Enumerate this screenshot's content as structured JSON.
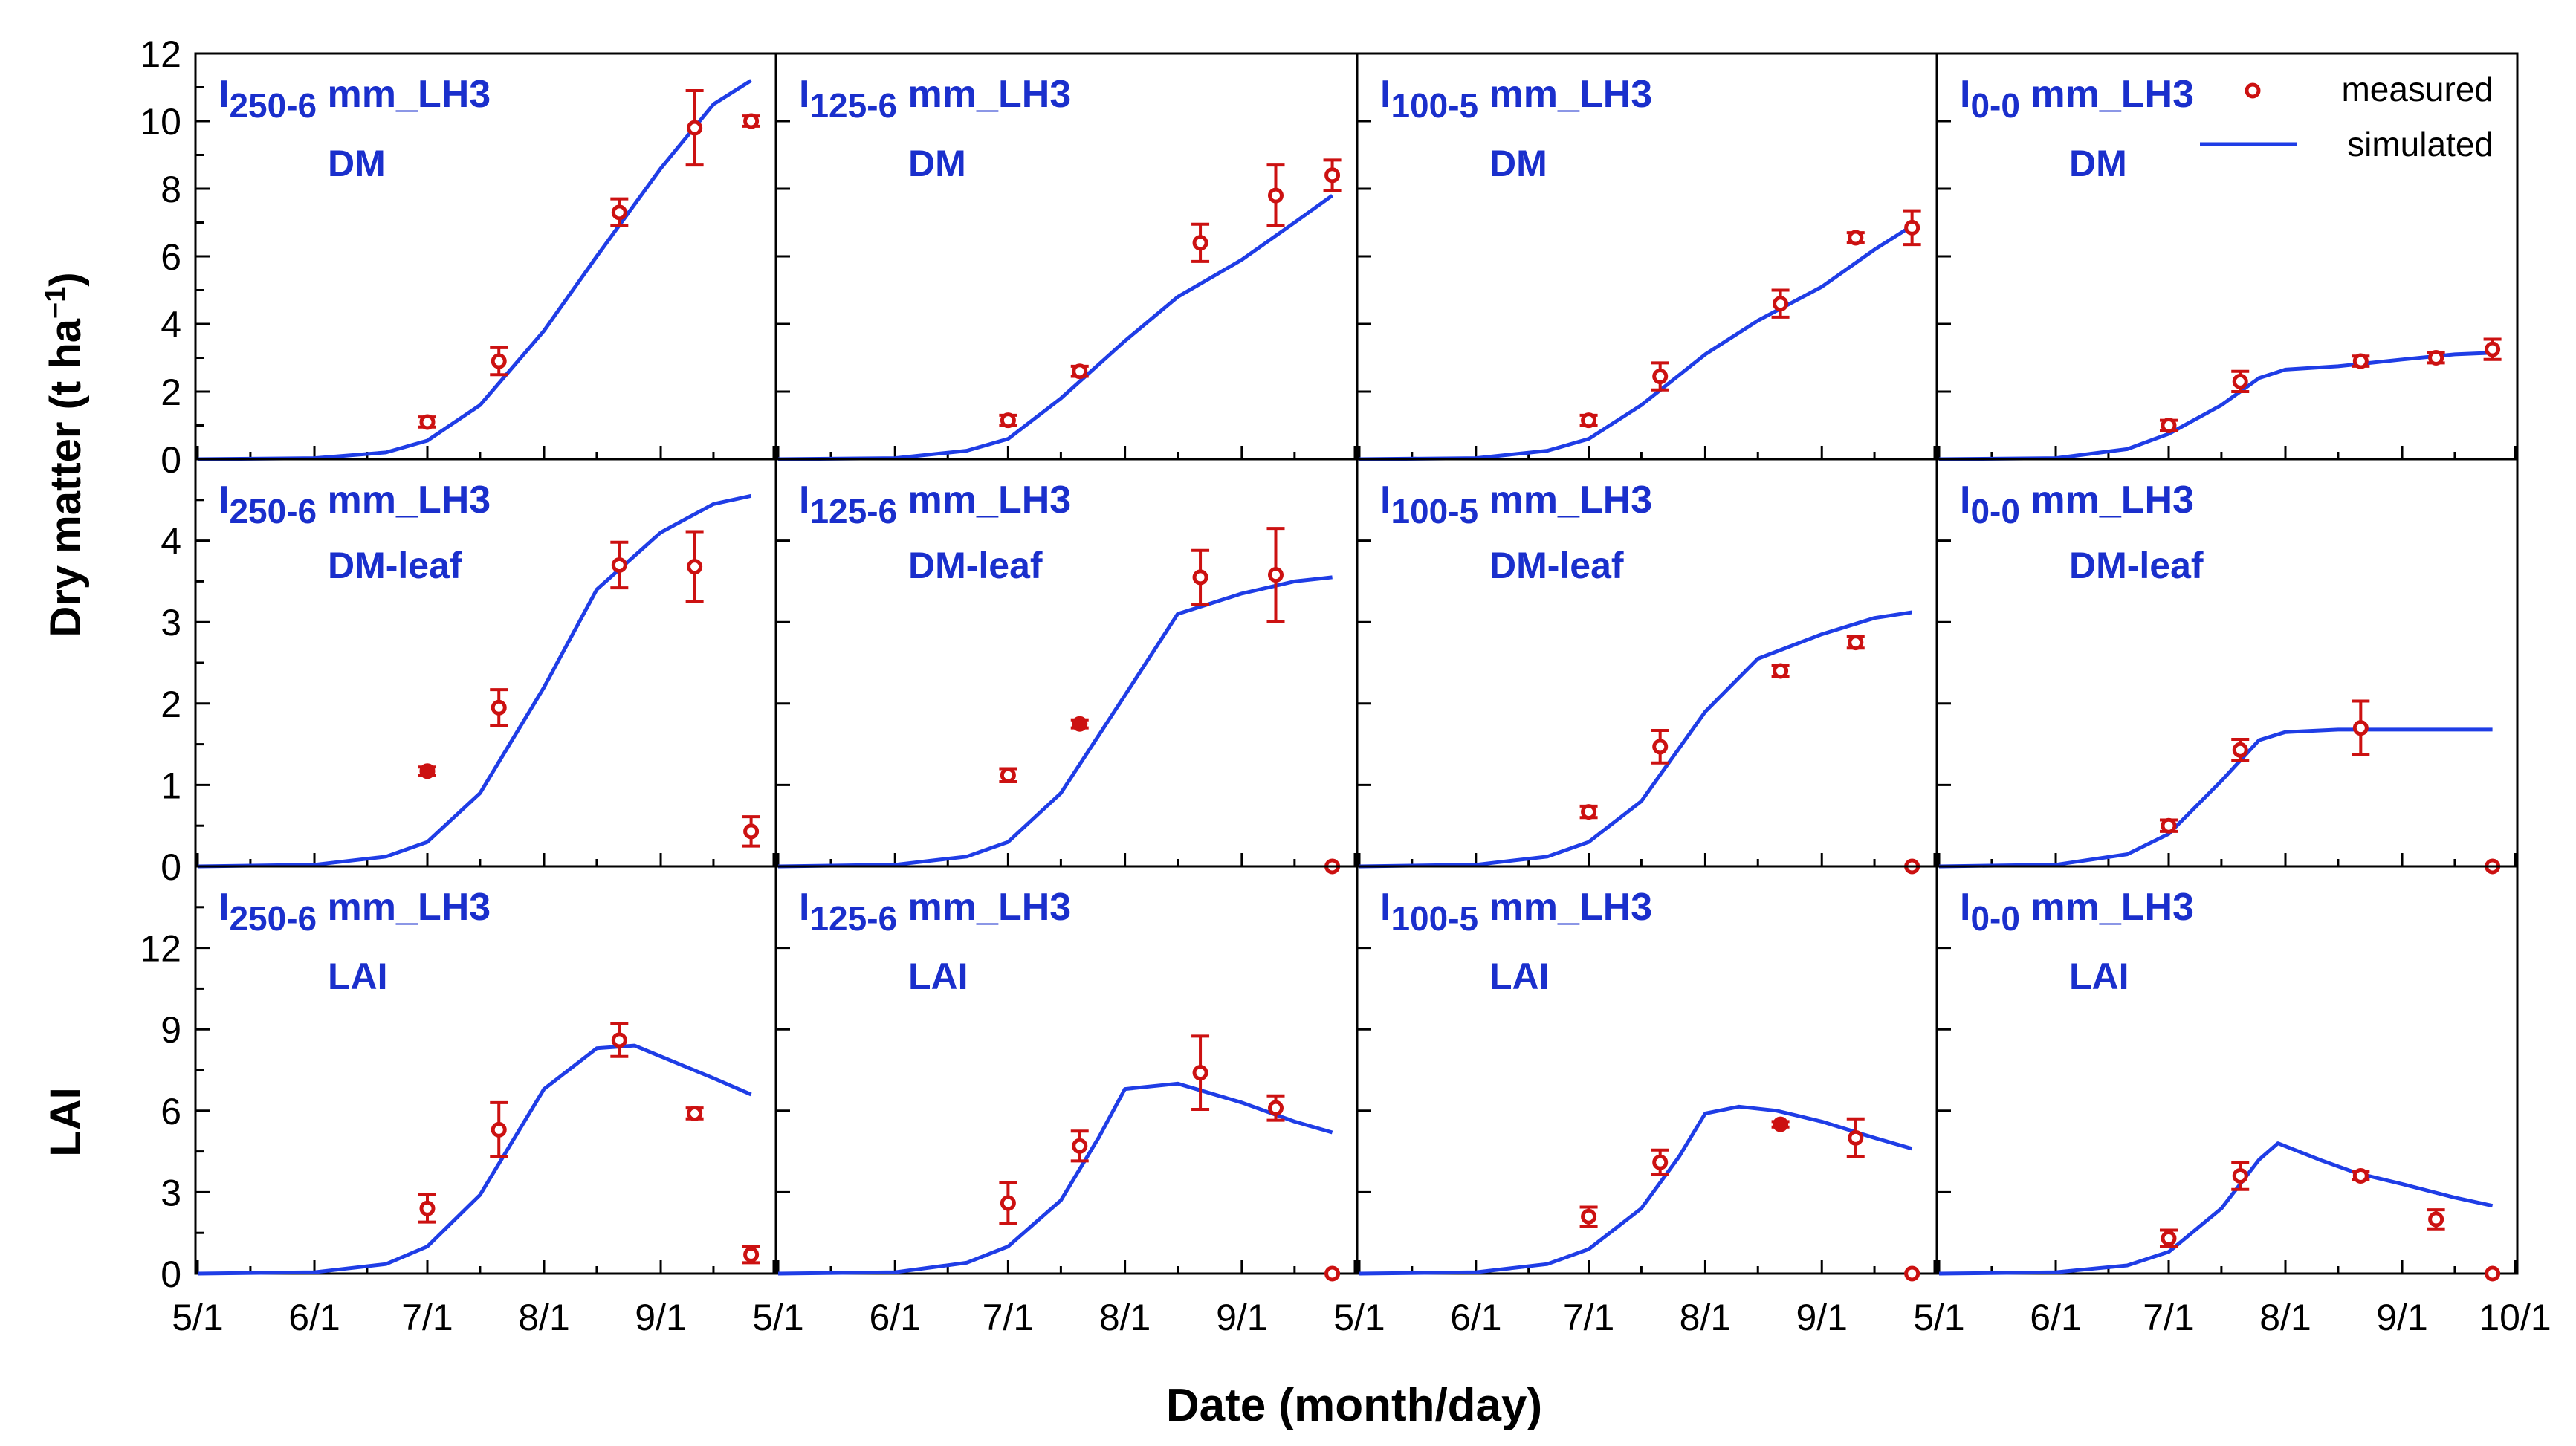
{
  "figure": {
    "ylabel_dm_main": "Dry matter (t ha",
    "ylabel_dm_sup": "−1",
    "ylabel_dm_close": ")",
    "ylabel_lai": "LAI",
    "xlabel": "Date (month/day)",
    "x_tick_labels": [
      "5/1",
      "6/1",
      "7/1",
      "8/1",
      "9/1",
      "5/1",
      "6/1",
      "7/1",
      "8/1",
      "9/1",
      "5/1",
      "6/1",
      "7/1",
      "8/1",
      "9/1",
      "5/1",
      "6/1",
      "7/1",
      "8/1",
      "9/1",
      "10/1"
    ],
    "legend": {
      "measured": "measured",
      "simulated": "simulated",
      "placement": "top-right of panel I0-0 DM"
    },
    "colors": {
      "measured": "#cc1111",
      "simulated": "#1f3de6",
      "label": "#1a2fcc",
      "axis": "#000000"
    }
  },
  "chart_data": [
    {
      "type": "scatter+line",
      "row": 0,
      "col": 0,
      "treatment_main": "I",
      "treatment_sub": "250-6",
      "treatment_rest": " mm_LH3",
      "variable": "DM",
      "ylim": [
        0,
        12
      ],
      "yticks": [
        0,
        2,
        4,
        6,
        8,
        10,
        12
      ],
      "yticks_labeled": true,
      "measured": [
        {
          "x": "7/1",
          "y": 1.1,
          "err": 0.15,
          "filled": false
        },
        {
          "x": "7/20",
          "y": 2.9,
          "err": 0.4,
          "filled": false
        },
        {
          "x": "8/21",
          "y": 7.3,
          "err": 0.4,
          "filled": false
        },
        {
          "x": "9/10",
          "y": 9.8,
          "err": 1.1,
          "filled": false
        },
        {
          "x": "9/25",
          "y": 10.0,
          "err": 0.15,
          "filled": false
        }
      ],
      "simulated": [
        [
          "5/1",
          0
        ],
        [
          "6/1",
          0.03
        ],
        [
          "6/20",
          0.2
        ],
        [
          "7/1",
          0.55
        ],
        [
          "7/15",
          1.6
        ],
        [
          "8/1",
          3.8
        ],
        [
          "8/15",
          6.0
        ],
        [
          "9/1",
          8.6
        ],
        [
          "9/15",
          10.5
        ],
        [
          "9/25",
          11.2
        ]
      ]
    },
    {
      "type": "scatter+line",
      "row": 0,
      "col": 1,
      "treatment_main": "I",
      "treatment_sub": "125-6",
      "treatment_rest": " mm_LH3",
      "variable": "DM",
      "ylim": [
        0,
        12
      ],
      "yticks": [
        0,
        2,
        4,
        6,
        8,
        10,
        12
      ],
      "yticks_labeled": false,
      "measured": [
        {
          "x": "7/1",
          "y": 1.15,
          "err": 0.15,
          "filled": false
        },
        {
          "x": "7/20",
          "y": 2.6,
          "err": 0.15,
          "filled": false
        },
        {
          "x": "8/21",
          "y": 6.4,
          "err": 0.55,
          "filled": false
        },
        {
          "x": "9/10",
          "y": 7.8,
          "err": 0.9,
          "filled": false
        },
        {
          "x": "9/25",
          "y": 8.4,
          "err": 0.45,
          "filled": false
        }
      ],
      "simulated": [
        [
          "5/1",
          0
        ],
        [
          "6/1",
          0.03
        ],
        [
          "6/20",
          0.25
        ],
        [
          "7/1",
          0.6
        ],
        [
          "7/15",
          1.8
        ],
        [
          "8/1",
          3.5
        ],
        [
          "8/15",
          4.8
        ],
        [
          "9/1",
          5.9
        ],
        [
          "9/15",
          7.0
        ],
        [
          "9/25",
          7.8
        ]
      ]
    },
    {
      "type": "scatter+line",
      "row": 0,
      "col": 2,
      "treatment_main": "I",
      "treatment_sub": "100-5",
      "treatment_rest": " mm_LH3",
      "variable": "DM",
      "ylim": [
        0,
        12
      ],
      "yticks": [
        0,
        2,
        4,
        6,
        8,
        10,
        12
      ],
      "yticks_labeled": false,
      "measured": [
        {
          "x": "7/1",
          "y": 1.15,
          "err": 0.15,
          "filled": false
        },
        {
          "x": "7/20",
          "y": 2.45,
          "err": 0.4,
          "filled": false
        },
        {
          "x": "8/21",
          "y": 4.6,
          "err": 0.4,
          "filled": false
        },
        {
          "x": "9/10",
          "y": 6.55,
          "err": 0.15,
          "filled": false
        },
        {
          "x": "9/25",
          "y": 6.85,
          "err": 0.5,
          "filled": false
        }
      ],
      "simulated": [
        [
          "5/1",
          0
        ],
        [
          "6/1",
          0.03
        ],
        [
          "6/20",
          0.25
        ],
        [
          "7/1",
          0.6
        ],
        [
          "7/15",
          1.6
        ],
        [
          "8/1",
          3.1
        ],
        [
          "8/15",
          4.1
        ],
        [
          "9/1",
          5.1
        ],
        [
          "9/15",
          6.2
        ],
        [
          "9/25",
          6.9
        ]
      ]
    },
    {
      "type": "scatter+line",
      "row": 0,
      "col": 3,
      "treatment_main": "I",
      "treatment_sub": "0-0",
      "treatment_rest": " mm_LH3",
      "variable": "DM",
      "ylim": [
        0,
        12
      ],
      "yticks": [
        0,
        2,
        4,
        6,
        8,
        10,
        12
      ],
      "yticks_labeled": false,
      "measured": [
        {
          "x": "7/1",
          "y": 1.0,
          "err": 0.15,
          "filled": false
        },
        {
          "x": "7/20",
          "y": 2.3,
          "err": 0.3,
          "filled": false
        },
        {
          "x": "8/21",
          "y": 2.9,
          "err": 0.15,
          "filled": false
        },
        {
          "x": "9/10",
          "y": 3.0,
          "err": 0.15,
          "filled": false
        },
        {
          "x": "9/25",
          "y": 3.25,
          "err": 0.3,
          "filled": false
        }
      ],
      "simulated": [
        [
          "5/1",
          0
        ],
        [
          "6/1",
          0.03
        ],
        [
          "6/20",
          0.3
        ],
        [
          "7/1",
          0.75
        ],
        [
          "7/15",
          1.6
        ],
        [
          "7/25",
          2.4
        ],
        [
          "8/1",
          2.65
        ],
        [
          "8/15",
          2.75
        ],
        [
          "9/1",
          2.95
        ],
        [
          "9/15",
          3.1
        ],
        [
          "9/25",
          3.15
        ]
      ]
    },
    {
      "type": "scatter+line",
      "row": 1,
      "col": 0,
      "treatment_main": "I",
      "treatment_sub": "250-6",
      "treatment_rest": " mm_LH3",
      "variable": "DM-leaf",
      "ylim": [
        0,
        5
      ],
      "yticks": [
        0,
        1,
        2,
        3,
        4
      ],
      "yticks_labeled": true,
      "measured": [
        {
          "x": "7/1",
          "y": 1.17,
          "err": 0.05,
          "filled": true
        },
        {
          "x": "7/20",
          "y": 1.95,
          "err": 0.22,
          "filled": false
        },
        {
          "x": "8/21",
          "y": 3.7,
          "err": 0.28,
          "filled": false
        },
        {
          "x": "9/10",
          "y": 3.68,
          "err": 0.43,
          "filled": false
        },
        {
          "x": "9/25",
          "y": 0.43,
          "err": 0.18,
          "filled": false
        }
      ],
      "simulated": [
        [
          "5/1",
          0
        ],
        [
          "6/1",
          0.02
        ],
        [
          "6/20",
          0.12
        ],
        [
          "7/1",
          0.3
        ],
        [
          "7/15",
          0.9
        ],
        [
          "8/1",
          2.2
        ],
        [
          "8/15",
          3.4
        ],
        [
          "9/1",
          4.1
        ],
        [
          "9/15",
          4.45
        ],
        [
          "9/25",
          4.55
        ]
      ]
    },
    {
      "type": "scatter+line",
      "row": 1,
      "col": 1,
      "treatment_main": "I",
      "treatment_sub": "125-6",
      "treatment_rest": " mm_LH3",
      "variable": "DM-leaf",
      "ylim": [
        0,
        5
      ],
      "yticks": [
        0,
        1,
        2,
        3,
        4
      ],
      "yticks_labeled": false,
      "measured": [
        {
          "x": "7/1",
          "y": 1.12,
          "err": 0.08,
          "filled": false
        },
        {
          "x": "7/20",
          "y": 1.75,
          "err": 0.05,
          "filled": true
        },
        {
          "x": "8/21",
          "y": 3.55,
          "err": 0.33,
          "filled": false
        },
        {
          "x": "9/10",
          "y": 3.58,
          "err": 0.57,
          "filled": false
        },
        {
          "x": "9/25",
          "y": 0.0,
          "err": 0,
          "filled": false
        }
      ],
      "simulated": [
        [
          "5/1",
          0
        ],
        [
          "6/1",
          0.02
        ],
        [
          "6/20",
          0.12
        ],
        [
          "7/1",
          0.3
        ],
        [
          "7/15",
          0.9
        ],
        [
          "8/1",
          2.1
        ],
        [
          "8/15",
          3.1
        ],
        [
          "9/1",
          3.35
        ],
        [
          "9/15",
          3.5
        ],
        [
          "9/25",
          3.55
        ]
      ]
    },
    {
      "type": "scatter+line",
      "row": 1,
      "col": 2,
      "treatment_main": "I",
      "treatment_sub": "100-5",
      "treatment_rest": " mm_LH3",
      "variable": "DM-leaf",
      "ylim": [
        0,
        5
      ],
      "yticks": [
        0,
        1,
        2,
        3,
        4
      ],
      "yticks_labeled": false,
      "measured": [
        {
          "x": "7/1",
          "y": 0.67,
          "err": 0.07,
          "filled": false
        },
        {
          "x": "7/20",
          "y": 1.47,
          "err": 0.2,
          "filled": false
        },
        {
          "x": "8/21",
          "y": 2.4,
          "err": 0.07,
          "filled": false
        },
        {
          "x": "9/10",
          "y": 2.75,
          "err": 0.07,
          "filled": false
        },
        {
          "x": "9/25",
          "y": 0.0,
          "err": 0,
          "filled": false
        }
      ],
      "simulated": [
        [
          "5/1",
          0
        ],
        [
          "6/1",
          0.02
        ],
        [
          "6/20",
          0.12
        ],
        [
          "7/1",
          0.3
        ],
        [
          "7/15",
          0.8
        ],
        [
          "8/1",
          1.9
        ],
        [
          "8/15",
          2.55
        ],
        [
          "9/1",
          2.85
        ],
        [
          "9/15",
          3.05
        ],
        [
          "9/25",
          3.12
        ]
      ]
    },
    {
      "type": "scatter+line",
      "row": 1,
      "col": 3,
      "treatment_main": "I",
      "treatment_sub": "0-0",
      "treatment_rest": " mm_LH3",
      "variable": "DM-leaf",
      "ylim": [
        0,
        5
      ],
      "yticks": [
        0,
        1,
        2,
        3,
        4
      ],
      "yticks_labeled": false,
      "measured": [
        {
          "x": "7/1",
          "y": 0.5,
          "err": 0.07,
          "filled": false
        },
        {
          "x": "7/20",
          "y": 1.43,
          "err": 0.13,
          "filled": false
        },
        {
          "x": "8/21",
          "y": 1.7,
          "err": 0.33,
          "filled": false
        },
        {
          "x": "9/25",
          "y": 0.0,
          "err": 0,
          "filled": false
        }
      ],
      "simulated": [
        [
          "5/1",
          0
        ],
        [
          "6/1",
          0.02
        ],
        [
          "6/20",
          0.15
        ],
        [
          "7/1",
          0.4
        ],
        [
          "7/15",
          1.05
        ],
        [
          "7/25",
          1.55
        ],
        [
          "8/1",
          1.65
        ],
        [
          "8/15",
          1.68
        ],
        [
          "9/1",
          1.68
        ],
        [
          "9/25",
          1.68
        ]
      ]
    },
    {
      "type": "scatter+line",
      "row": 2,
      "col": 0,
      "treatment_main": "I",
      "treatment_sub": "250-6",
      "treatment_rest": " mm_LH3",
      "variable": "LAI",
      "ylim": [
        0,
        15
      ],
      "yticks": [
        0,
        3,
        6,
        9,
        12
      ],
      "yticks_labeled": true,
      "measured": [
        {
          "x": "7/1",
          "y": 2.4,
          "err": 0.5,
          "filled": false
        },
        {
          "x": "7/20",
          "y": 5.3,
          "err": 1.0,
          "filled": false
        },
        {
          "x": "8/21",
          "y": 8.6,
          "err": 0.6,
          "filled": false
        },
        {
          "x": "9/10",
          "y": 5.9,
          "err": 0.2,
          "filled": false
        },
        {
          "x": "9/25",
          "y": 0.7,
          "err": 0.3,
          "filled": false
        }
      ],
      "simulated": [
        [
          "5/1",
          0
        ],
        [
          "6/1",
          0.05
        ],
        [
          "6/20",
          0.35
        ],
        [
          "7/1",
          1.0
        ],
        [
          "7/15",
          2.9
        ],
        [
          "8/1",
          6.8
        ],
        [
          "8/15",
          8.3
        ],
        [
          "8/25",
          8.4
        ],
        [
          "9/1",
          8.0
        ],
        [
          "9/15",
          7.2
        ],
        [
          "9/25",
          6.6
        ]
      ]
    },
    {
      "type": "scatter+line",
      "row": 2,
      "col": 1,
      "treatment_main": "I",
      "treatment_sub": "125-6",
      "treatment_rest": " mm_LH3",
      "variable": "LAI",
      "ylim": [
        0,
        15
      ],
      "yticks": [
        0,
        3,
        6,
        9,
        12
      ],
      "yticks_labeled": false,
      "measured": [
        {
          "x": "7/1",
          "y": 2.6,
          "err": 0.75,
          "filled": false
        },
        {
          "x": "7/20",
          "y": 4.7,
          "err": 0.55,
          "filled": false
        },
        {
          "x": "8/21",
          "y": 7.4,
          "err": 1.35,
          "filled": false
        },
        {
          "x": "9/10",
          "y": 6.1,
          "err": 0.45,
          "filled": false
        },
        {
          "x": "9/25",
          "y": 0.0,
          "err": 0,
          "filled": false
        }
      ],
      "simulated": [
        [
          "5/1",
          0
        ],
        [
          "6/1",
          0.05
        ],
        [
          "6/20",
          0.4
        ],
        [
          "7/1",
          1.0
        ],
        [
          "7/15",
          2.7
        ],
        [
          "7/25",
          5.0
        ],
        [
          "8/1",
          6.8
        ],
        [
          "8/15",
          7.0
        ],
        [
          "9/1",
          6.3
        ],
        [
          "9/15",
          5.6
        ],
        [
          "9/25",
          5.2
        ]
      ]
    },
    {
      "type": "scatter+line",
      "row": 2,
      "col": 2,
      "treatment_main": "I",
      "treatment_sub": "100-5",
      "treatment_rest": " mm_LH3",
      "variable": "LAI",
      "ylim": [
        0,
        15
      ],
      "yticks": [
        0,
        3,
        6,
        9,
        12
      ],
      "yticks_labeled": false,
      "measured": [
        {
          "x": "7/1",
          "y": 2.1,
          "err": 0.35,
          "filled": false
        },
        {
          "x": "7/20",
          "y": 4.1,
          "err": 0.45,
          "filled": false
        },
        {
          "x": "8/21",
          "y": 5.5,
          "err": 0.1,
          "filled": true
        },
        {
          "x": "9/10",
          "y": 5.0,
          "err": 0.7,
          "filled": false
        },
        {
          "x": "9/25",
          "y": 0.0,
          "err": 0,
          "filled": false
        }
      ],
      "simulated": [
        [
          "5/1",
          0
        ],
        [
          "6/1",
          0.05
        ],
        [
          "6/20",
          0.35
        ],
        [
          "7/1",
          0.9
        ],
        [
          "7/15",
          2.4
        ],
        [
          "7/25",
          4.3
        ],
        [
          "8/1",
          5.9
        ],
        [
          "8/10",
          6.15
        ],
        [
          "8/20",
          6.0
        ],
        [
          "9/1",
          5.6
        ],
        [
          "9/15",
          5.0
        ],
        [
          "9/25",
          4.6
        ]
      ]
    },
    {
      "type": "scatter+line",
      "row": 2,
      "col": 3,
      "treatment_main": "I",
      "treatment_sub": "0-0",
      "treatment_rest": " mm_LH3",
      "variable": "LAI",
      "ylim": [
        0,
        15
      ],
      "yticks": [
        0,
        3,
        6,
        9,
        12
      ],
      "yticks_labeled": false,
      "measured": [
        {
          "x": "7/1",
          "y": 1.3,
          "err": 0.3,
          "filled": false
        },
        {
          "x": "7/20",
          "y": 3.6,
          "err": 0.5,
          "filled": false
        },
        {
          "x": "8/21",
          "y": 3.6,
          "err": 0.15,
          "filled": false
        },
        {
          "x": "9/10",
          "y": 2.0,
          "err": 0.35,
          "filled": false
        },
        {
          "x": "9/25",
          "y": 0.0,
          "err": 0,
          "filled": false
        }
      ],
      "simulated": [
        [
          "5/1",
          0
        ],
        [
          "6/1",
          0.05
        ],
        [
          "6/20",
          0.3
        ],
        [
          "7/1",
          0.8
        ],
        [
          "7/15",
          2.4
        ],
        [
          "7/25",
          4.2
        ],
        [
          "7/30",
          4.8
        ],
        [
          "8/10",
          4.2
        ],
        [
          "8/20",
          3.7
        ],
        [
          "9/1",
          3.3
        ],
        [
          "9/15",
          2.8
        ],
        [
          "9/25",
          2.5
        ]
      ]
    }
  ]
}
